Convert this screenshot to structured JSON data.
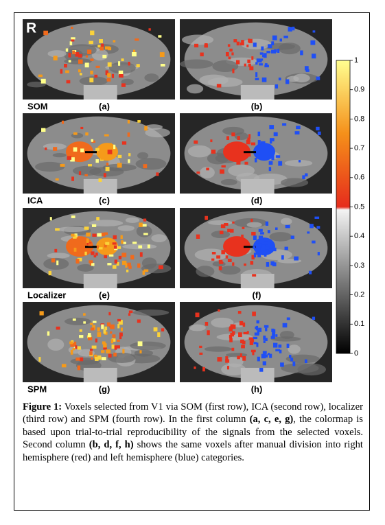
{
  "figure": {
    "orientation_label": "R",
    "rows": [
      {
        "method": "SOM",
        "left_panel": "(a)",
        "right_panel": "(b)"
      },
      {
        "method": "ICA",
        "left_panel": "(c)",
        "right_panel": "(d)"
      },
      {
        "method": "Localizer",
        "left_panel": "(e)",
        "right_panel": "(f)"
      },
      {
        "method": "SPM",
        "left_panel": "(g)",
        "right_panel": "(h)"
      }
    ],
    "colorbar": {
      "ticks": [
        0,
        0.1,
        0.2,
        0.3,
        0.4,
        0.5,
        0.6,
        0.7,
        0.8,
        0.9,
        1
      ]
    },
    "caption": {
      "label": "Figure 1:",
      "text_1": " Voxels selected from V1 via SOM (first row), ICA (second row), localizer (third row) and SPM (fourth row).  In the first column ",
      "emphasis_1": "(a, c, e, g)",
      "text_2": ", the colormap is based upon trial-to-trial reproducibility of the signals from the selected voxels. Second column ",
      "emphasis_2": "(b, d, f, h)",
      "text_3": " shows the same voxels after manual division into right hemisphere (red) and left hemisphere (blue) categories."
    }
  }
}
